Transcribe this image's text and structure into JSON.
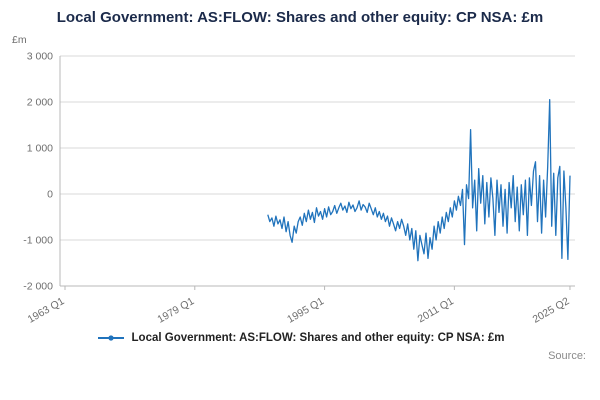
{
  "title": "Local Government: AS:FLOW: Shares and other equity: CP NSA: £m",
  "y_axis": {
    "unit": "£m",
    "ticks": [
      {
        "v": 3000,
        "label": "3 000"
      },
      {
        "v": 2000,
        "label": "2 000"
      },
      {
        "v": 1000,
        "label": "1 000"
      },
      {
        "v": 0,
        "label": "0"
      },
      {
        "v": -1000,
        "label": "-1 000"
      },
      {
        "v": -2000,
        "label": "-2 000"
      }
    ]
  },
  "x_axis": {
    "ticks": [
      {
        "year": 1963.0,
        "label": "1963 Q1"
      },
      {
        "year": 1979.0,
        "label": "1979 Q1"
      },
      {
        "year": 1995.0,
        "label": "1995 Q1"
      },
      {
        "year": 2011.0,
        "label": "2011 Q1"
      },
      {
        "year": 2025.25,
        "label": "2025 Q2"
      }
    ]
  },
  "legend": {
    "label": "Local Government: AS:FLOW: Shares and other equity: CP NSA: £m"
  },
  "source": "Source:",
  "colors": {
    "line": "#2073bc",
    "grid": "#d9d9d9",
    "axis": "#b8b8b8",
    "tick_text": "#6e6e6e",
    "title_text": "#1b2a4a"
  },
  "chart_data": {
    "type": "line",
    "title": "Local Government: AS:FLOW: Shares and other equity: CP NSA: £m",
    "xlabel": "",
    "ylabel": "£m",
    "ylim": [
      -2000,
      3000
    ],
    "xlim": [
      1963.0,
      2025.5
    ],
    "legend_position": "bottom",
    "grid": true,
    "x_start": 1988.0,
    "x_step": 0.25,
    "x_unit": "quarterly-year",
    "series_name": "Local Government: AS:FLOW: Shares and other equity: CP NSA: £m",
    "values": [
      -450,
      -600,
      -520,
      -700,
      -480,
      -650,
      -560,
      -750,
      -500,
      -820,
      -600,
      -900,
      -1050,
      -700,
      -850,
      -600,
      -500,
      -680,
      -420,
      -600,
      -350,
      -550,
      -400,
      -620,
      -300,
      -480,
      -380,
      -550,
      -320,
      -500,
      -280,
      -450,
      -380,
      -250,
      -420,
      -300,
      -200,
      -350,
      -260,
      -400,
      -180,
      -320,
      -240,
      -380,
      -300,
      -150,
      -350,
      -230,
      -280,
      -400,
      -200,
      -320,
      -450,
      -300,
      -500,
      -380,
      -550,
      -420,
      -600,
      -480,
      -700,
      -520,
      -650,
      -800,
      -600,
      -750,
      -550,
      -700,
      -900,
      -650,
      -1000,
      -750,
      -1200,
      -800,
      -1450,
      -900,
      -1100,
      -1300,
      -850,
      -1400,
      -950,
      -1200,
      -700,
      -1000,
      -600,
      -850,
      -500,
      -750,
      -400,
      -600,
      -300,
      -500,
      -150,
      -350,
      -50,
      -250,
      100,
      -1100,
      200,
      -100,
      1400,
      -300,
      300,
      -800,
      550,
      -200,
      400,
      -650,
      250,
      -500,
      350,
      -100,
      -900,
      300,
      -400,
      200,
      -700,
      100,
      -850,
      250,
      -300,
      400,
      -600,
      150,
      -800,
      200,
      -450,
      300,
      -900,
      350,
      -250,
      500,
      700,
      -600,
      400,
      -850,
      300,
      -500,
      600,
      2050,
      -700,
      450,
      -900,
      350,
      600,
      -1400,
      500,
      -300,
      -1420,
      400
    ]
  }
}
